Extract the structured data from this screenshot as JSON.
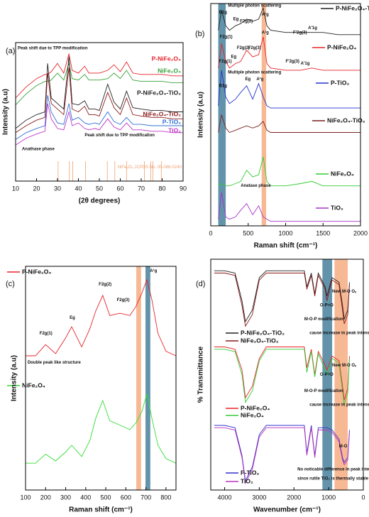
{
  "chart_data": [
    {
      "type": "line",
      "panel_label": "(a)",
      "xlabel": "(2θ degrees)",
      "ylabel": "Intensity (a.u)",
      "xlim": [
        10,
        90
      ],
      "xticks": [
        10,
        20,
        30,
        40,
        50,
        60,
        70,
        80,
        90
      ],
      "ylim": [
        0,
        100
      ],
      "x": [
        10,
        15,
        20,
        24,
        25.3,
        27,
        30,
        33,
        35.5,
        37,
        40,
        43,
        45,
        48,
        50,
        54,
        57,
        60,
        63,
        66,
        70,
        75,
        80,
        85,
        90
      ],
      "series": [
        {
          "name": "P-NiFe₂O₄",
          "color": "#e8232a",
          "values": [
            60,
            68,
            74,
            77,
            77,
            79,
            85,
            78,
            92,
            80,
            78,
            83,
            78,
            78,
            78,
            80,
            84,
            79,
            86,
            78,
            77,
            77,
            77,
            76,
            76
          ]
        },
        {
          "name": "NiFe₂O₄",
          "color": "#3aa33a",
          "values": [
            55,
            63,
            69,
            72,
            72,
            73,
            78,
            73,
            85,
            74,
            73,
            77,
            73,
            73,
            73,
            74,
            78,
            74,
            80,
            73,
            72,
            72,
            72,
            71,
            71
          ]
        },
        {
          "name": "P-NiFe₂O₄-TiO₂",
          "color": "#222222",
          "values": [
            38,
            44,
            48,
            50,
            85,
            60,
            56,
            52,
            90,
            56,
            55,
            58,
            52,
            52,
            51,
            70,
            57,
            52,
            65,
            53,
            52,
            51,
            51,
            50,
            50
          ]
        },
        {
          "name": "NiFe₂O₄-TiO₂",
          "color": "#8b1a1a",
          "values": [
            35,
            40,
            44,
            46,
            78,
            56,
            52,
            48,
            82,
            52,
            50,
            54,
            48,
            48,
            47,
            64,
            53,
            48,
            60,
            48,
            47,
            46,
            46,
            45,
            45
          ]
        },
        {
          "name": "P-TiO₂",
          "color": "#2f6fd6",
          "values": [
            30,
            35,
            38,
            40,
            62,
            50,
            42,
            41,
            56,
            44,
            46,
            42,
            41,
            42,
            41,
            50,
            43,
            41,
            46,
            41,
            41,
            40,
            40,
            40,
            40
          ]
        },
        {
          "name": "TiO₂",
          "color": "#c034c8",
          "values": [
            26,
            31,
            34,
            36,
            56,
            45,
            38,
            37,
            50,
            40,
            42,
            38,
            37,
            38,
            37,
            45,
            39,
            37,
            42,
            37,
            37,
            36,
            36,
            35,
            35
          ]
        }
      ],
      "reference_peaks": [
        30.3,
        35.7,
        37.3,
        43.4,
        53.8,
        57.4,
        63.0,
        71.5,
        74.6,
        75.6,
        79.6
      ],
      "reference_color": "#f0a070",
      "reference_label": {
        "text": "NiFe₂O₄ JCPDS No. 00-086-0240",
        "x": 74,
        "y": 10
      },
      "annotations": [
        {
          "text": "Peak shift due to TPP modification",
          "x": 11,
          "y": 96
        },
        {
          "text": "Peak shift due to TPP modification",
          "x": 43,
          "y": 33
        },
        {
          "text": "Anathase phase",
          "x": 13,
          "y": 23
        }
      ]
    },
    {
      "type": "line",
      "panel_label": "(b)",
      "xlabel": "Raman shift (cm⁻¹)",
      "ylabel": "Intensity (a.u)",
      "xlim": [
        0,
        2000
      ],
      "xticks": [
        0,
        500,
        1000,
        1500,
        2000
      ],
      "ylim": [
        0,
        100
      ],
      "x": [
        100,
        144,
        200,
        250,
        330,
        400,
        480,
        560,
        640,
        700,
        750,
        800,
        1000,
        1200,
        1350,
        1500,
        1700,
        2000
      ],
      "bands": [
        {
          "range": [
            100,
            200
          ],
          "color": "#2e6f8e"
        },
        {
          "range": [
            680,
            740
          ],
          "color": "#f4a070"
        }
      ],
      "series": [
        {
          "name": "P-NiFe₂O₄-TiO₂",
          "color": "#222222",
          "values": [
            88,
            97,
            90,
            88,
            90,
            91,
            93,
            92,
            93,
            98,
            90,
            88,
            87,
            87,
            87,
            87,
            86,
            86
          ]
        },
        {
          "name": "P-NiFe₂O₄",
          "color": "#e8232a",
          "values": [
            71,
            82,
            74,
            71,
            73,
            74,
            79,
            76,
            77,
            85,
            73,
            71,
            70,
            70,
            71,
            70,
            70,
            70
          ]
        },
        {
          "name": "P-TiO₂",
          "color": "#2233cc",
          "values": [
            54,
            70,
            58,
            55,
            57,
            60,
            63,
            57,
            64,
            58,
            54,
            53,
            53,
            53,
            53,
            53,
            53,
            53
          ]
        },
        {
          "name": "NiFe₂O₄-TiO₂",
          "color": "#7a1f1f",
          "values": [
            42,
            50,
            44,
            42,
            43,
            44,
            45,
            44,
            45,
            47,
            43,
            42,
            42,
            42,
            42,
            42,
            42,
            42
          ]
        },
        {
          "name": "NiFe₂O₄",
          "color": "#33cc33",
          "values": [
            18,
            19,
            18,
            18,
            19,
            20,
            25,
            22,
            23,
            31,
            20,
            18,
            18,
            19,
            20,
            18,
            18,
            18
          ]
        },
        {
          "name": "TiO₂",
          "color": "#aa33cc",
          "values": [
            3,
            15,
            4,
            3,
            4,
            7,
            10,
            5,
            9,
            4,
            3,
            2,
            2,
            2,
            2,
            2,
            2,
            2
          ]
        }
      ],
      "annotations": [
        {
          "text": "B1g",
          "x": 110,
          "y": 96
        },
        {
          "text": "Multiple photon scattering",
          "x": 230,
          "y": 99
        },
        {
          "text": "F2g(1)",
          "x": 120,
          "y": 85
        },
        {
          "text": "Eg",
          "x": 300,
          "y": 93
        },
        {
          "text": "F2g(2)",
          "x": 390,
          "y": 92
        },
        {
          "text": "A¹g",
          "x": 680,
          "y": 95
        },
        {
          "text": "F'2g(3)",
          "x": 1100,
          "y": 87
        },
        {
          "text": "A'1g",
          "x": 1300,
          "y": 89
        },
        {
          "text": "F2g(1)",
          "x": 110,
          "y": 74
        },
        {
          "text": "Eg",
          "x": 270,
          "y": 76
        },
        {
          "text": "F2g(2)",
          "x": 350,
          "y": 80
        },
        {
          "text": "F2g(3)",
          "x": 500,
          "y": 80
        },
        {
          "text": "A¹g",
          "x": 680,
          "y": 87
        },
        {
          "text": "F'2g(3)",
          "x": 1000,
          "y": 74
        },
        {
          "text": "A'1g",
          "x": 1200,
          "y": 73
        },
        {
          "text": "B1g",
          "x": 110,
          "y": 63
        },
        {
          "text": "Multiple photon scattering",
          "x": 230,
          "y": 69
        },
        {
          "text": "Eg",
          "x": 460,
          "y": 66
        },
        {
          "text": "A¹g",
          "x": 610,
          "y": 66
        },
        {
          "text": "Anatase phase",
          "x": 400,
          "y": 18
        }
      ]
    },
    {
      "type": "line",
      "panel_label": "(c)",
      "xlabel": "Raman shift (cm⁻¹)",
      "ylabel": "Intensity (a.u)",
      "xlim": [
        100,
        850
      ],
      "xticks": [
        100,
        200,
        300,
        400,
        500,
        600,
        700,
        800
      ],
      "ylim": [
        0,
        100
      ],
      "x": [
        100,
        150,
        200,
        250,
        300,
        330,
        380,
        420,
        450,
        485,
        520,
        570,
        620,
        650,
        680,
        705,
        730,
        760,
        800,
        850
      ],
      "bands": [
        {
          "range": [
            652,
            676
          ],
          "color": "#f4a070"
        },
        {
          "range": [
            698,
            722
          ],
          "color": "#2e6f8e"
        }
      ],
      "series": [
        {
          "name": "P-NiFe₂O₄",
          "color": "#e8232a",
          "values": [
            60,
            60,
            65,
            61,
            68,
            73,
            64,
            72,
            80,
            87,
            78,
            79,
            78,
            82,
            88,
            94,
            85,
            70,
            62,
            60
          ]
        },
        {
          "name": "NiFe₂O₄",
          "color": "#33dd33",
          "values": [
            12,
            12,
            16,
            13,
            17,
            20,
            15,
            22,
            32,
            40,
            31,
            29,
            27,
            30,
            35,
            43,
            32,
            20,
            14,
            12
          ]
        }
      ],
      "annotations": [
        {
          "text": "F2g(1)",
          "x": 170,
          "y": 70
        },
        {
          "text": "Eg",
          "x": 320,
          "y": 77
        },
        {
          "text": "F2g(2)",
          "x": 465,
          "y": 92
        },
        {
          "text": "F2g(3)",
          "x": 555,
          "y": 85
        },
        {
          "text": "A¹g",
          "x": 720,
          "y": 98
        },
        {
          "text": "Double peak like structure",
          "x": 110,
          "y": 57
        }
      ]
    },
    {
      "type": "line",
      "panel_label": "(d)",
      "xlabel": "Wavenumber (cm⁻¹)",
      "ylabel": "% Transmittance",
      "xlim": [
        4400,
        0
      ],
      "xticks": [
        4000,
        3000,
        2000,
        1000,
        0
      ],
      "ylim": [
        0,
        100
      ],
      "x": [
        4300,
        4000,
        3700,
        3500,
        3400,
        3200,
        3000,
        2800,
        2400,
        2000,
        1700,
        1630,
        1500,
        1400,
        1300,
        1100,
        1050,
        900,
        700,
        600,
        550,
        450,
        400
      ],
      "bands": [
        {
          "range": [
            900,
            1180
          ],
          "color": "#2e6f8e"
        },
        {
          "range": [
            450,
            830
          ],
          "color": "#f4a070"
        }
      ],
      "series": [
        {
          "name": "P-NiFe₂O₄-TiO₂",
          "color": "#222222",
          "values": [
            95,
            95,
            94,
            82,
            73,
            78,
            92,
            95,
            95,
            95,
            95,
            88,
            94,
            85,
            94,
            88,
            84,
            92,
            90,
            80,
            74,
            78,
            90
          ]
        },
        {
          "name": "NiFe₂O₄-TiO₂",
          "color": "#8b1a1a",
          "values": [
            94,
            94,
            93,
            80,
            71,
            76,
            91,
            94,
            94,
            94,
            94,
            87,
            93,
            84,
            93,
            87,
            82,
            91,
            89,
            78,
            72,
            76,
            89
          ]
        },
        {
          "name": "P-NiFe₂O₄",
          "color": "#e8232a",
          "values": [
            62,
            62,
            61,
            52,
            40,
            45,
            57,
            62,
            62,
            62,
            62,
            53,
            61,
            50,
            60,
            54,
            52,
            58,
            56,
            45,
            39,
            44,
            58
          ]
        },
        {
          "name": "NiFe₂O₄",
          "color": "#33cc33",
          "values": [
            61,
            61,
            60,
            50,
            38,
            43,
            56,
            61,
            61,
            61,
            61,
            51,
            60,
            49,
            59,
            52,
            50,
            57,
            55,
            43,
            37,
            42,
            57
          ]
        },
        {
          "name": "P-TiO₂",
          "color": "#3333cc",
          "values": [
            28,
            28,
            27,
            15,
            4,
            10,
            24,
            28,
            28,
            28,
            28,
            16,
            28,
            15,
            27,
            27,
            27,
            26,
            22,
            14,
            12,
            14,
            26
          ]
        },
        {
          "name": "TiO₂",
          "color": "#bb33bb",
          "values": [
            27,
            27,
            26,
            14,
            3,
            9,
            23,
            27,
            27,
            27,
            27,
            15,
            27,
            14,
            26,
            26,
            26,
            25,
            21,
            13,
            11,
            13,
            25
          ]
        }
      ],
      "annotations": [
        {
          "text": "O-P=O",
          "x": 1250,
          "y": 80
        },
        {
          "text": "New M-O Oₓ",
          "x": 900,
          "y": 86
        },
        {
          "text": "M-O-P modification",
          "x": 1700,
          "y": 74
        },
        {
          "text": "cause increase in peak intensity",
          "x": 1550,
          "y": 68
        },
        {
          "text": "O-P=O",
          "x": 1250,
          "y": 50
        },
        {
          "text": "New M-O Oₓ",
          "x": 900,
          "y": 54
        },
        {
          "text": "M-O-P modification",
          "x": 1700,
          "y": 43
        },
        {
          "text": "cause increase in peak intensity",
          "x": 1550,
          "y": 37
        },
        {
          "text": "M-O",
          "x": 700,
          "y": 19
        },
        {
          "text": "No noticable difference in peak intensity",
          "x": 1900,
          "y": 9
        },
        {
          "text": "since rutile TiO₂ is thermally stable",
          "x": 1900,
          "y": 5
        }
      ]
    }
  ]
}
